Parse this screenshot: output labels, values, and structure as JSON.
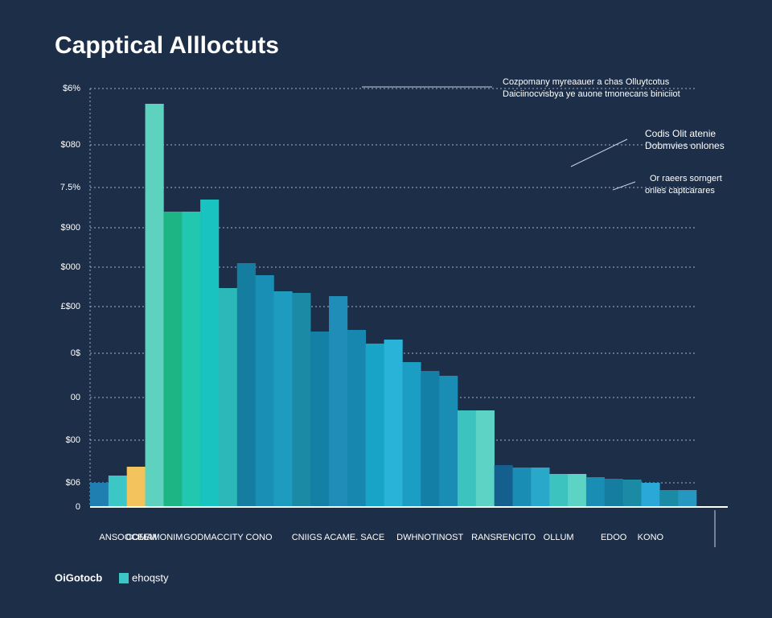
{
  "chart_data": {
    "type": "bar",
    "title": "Capptical Allloctuts",
    "annotations": [
      {
        "lines": [
          "Cozpomany myreaauer a chas Olluytcotus",
          "Daiciinocvisbya ye auone tmonecans biniciiot"
        ]
      },
      {
        "lines": [
          "Codis Olit atenie",
          "Dobmvies onlones"
        ]
      },
      {
        "lines": [
          "Or raeers sorngert",
          "onles captcarares"
        ]
      }
    ],
    "categories": [
      "ANSOOCEEM",
      null,
      null,
      "COMAMONIM",
      null,
      null,
      null,
      "GODMACCITY CONO",
      null,
      null,
      null,
      null,
      null,
      "CNIIGS ACAME. SACE",
      null,
      null,
      null,
      null,
      "DWHNOTINOST",
      null,
      null,
      null,
      "RANSRENCITO",
      null,
      null,
      "OLLUM",
      null,
      null,
      "EDOO",
      null,
      "KONO",
      null,
      null
    ],
    "values": [
      30,
      39,
      50,
      501,
      367,
      367,
      382,
      272,
      303,
      288,
      268,
      266,
      218,
      262,
      220,
      203,
      208,
      180,
      169,
      163,
      120,
      120,
      52,
      49,
      49,
      41,
      41,
      37,
      35,
      34,
      30,
      21,
      21
    ],
    "colors": [
      "#1e7fb0",
      "#3cc6c6",
      "#f3c35e",
      "#5dd3bf",
      "#1db584",
      "#22c7b0",
      "#19c4c0",
      "#2cb8b8",
      "#157ea0",
      "#1a8fb5",
      "#1e9cc0",
      "#1a8aa5",
      "#1580a6",
      "#1f8db8",
      "#1887b0",
      "#17a4c6",
      "#29b3d8",
      "#1c9ec4",
      "#147fa6",
      "#1a8db5",
      "#3cc3c0",
      "#5dd3c6",
      "#155f8f",
      "#1a8db5",
      "#2aa8c9",
      "#3cc3c0",
      "#5dd3c6",
      "#1a8db5",
      "#157ea0",
      "#1a8aa5",
      "#2aa8d8",
      "#1a8aa5",
      "#2597c0"
    ],
    "ylim": [
      0,
      520
    ],
    "yticks": [
      0,
      {
        "value": 30,
        "label": "$06"
      },
      {
        "value": 83,
        "label": "$00"
      },
      {
        "value": 136,
        "label": "00"
      },
      {
        "value": 191,
        "label": "0$"
      },
      {
        "value": 249,
        "label": "£$00"
      },
      {
        "value": 298,
        "label": "$000"
      },
      {
        "value": 347,
        "label": "$900"
      },
      {
        "value": 397,
        "label": "7.5%"
      },
      {
        "value": 450,
        "label": "$080"
      },
      {
        "value": 520,
        "label": "$6%"
      }
    ],
    "grid": true,
    "legend": [
      {
        "label": "OiGotocb"
      },
      {
        "label": "ehoqsty",
        "color": "#3cc6c6"
      }
    ]
  }
}
